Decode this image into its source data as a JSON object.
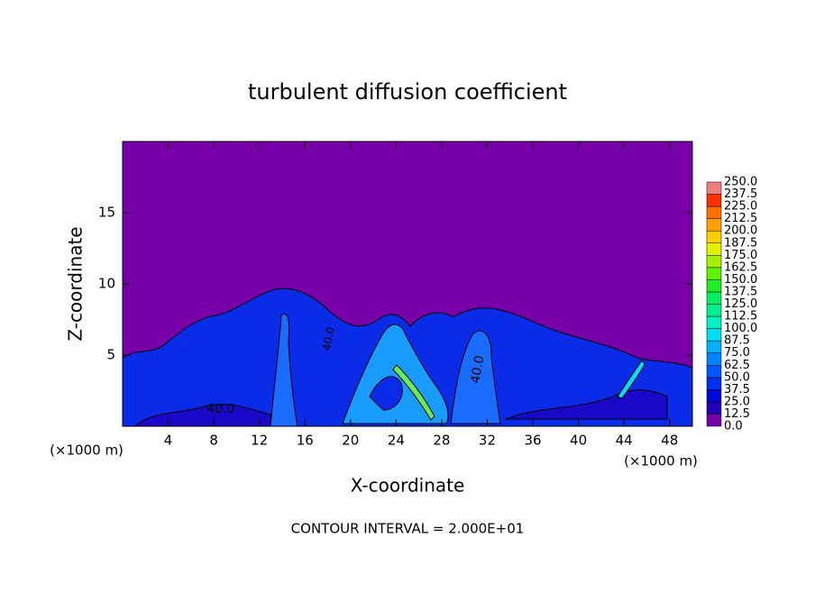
{
  "chart_data": {
    "type": "contour",
    "title": "turbulent diffusion coefficient",
    "x_label": "X-coordinate",
    "y_label": "Z-coordinate",
    "x_unit": "(×1000 m)",
    "x_unit_right": "(×1000 m)",
    "footer": "CONTOUR INTERVAL = 2.000E+01",
    "xlim": [
      0,
      50
    ],
    "ylim": [
      0,
      20
    ],
    "xticks": [
      4,
      8,
      12,
      16,
      20,
      24,
      28,
      32,
      36,
      40,
      44,
      48
    ],
    "yticks": [
      5,
      10,
      15
    ],
    "contour_labels": [
      "40.0",
      "40.0",
      "40.0"
    ],
    "colorbar": {
      "levels": [
        {
          "value": 0,
          "label": "0.0"
        },
        {
          "value": 12.5,
          "label": "12.5"
        },
        {
          "value": 25,
          "label": "25.0"
        },
        {
          "value": 37.5,
          "label": "37.5"
        },
        {
          "value": 50,
          "label": "50.0"
        },
        {
          "value": 62.5,
          "label": "62.5"
        },
        {
          "value": 75,
          "label": "75.0"
        },
        {
          "value": 87.5,
          "label": "87.5"
        },
        {
          "value": 100,
          "label": "100.0"
        },
        {
          "value": 112.5,
          "label": "112.5"
        },
        {
          "value": 125,
          "label": "125.0"
        },
        {
          "value": 137.5,
          "label": "137.5"
        },
        {
          "value": 150,
          "label": "150.0"
        },
        {
          "value": 162.5,
          "label": "162.5"
        },
        {
          "value": 175,
          "label": "175.0"
        },
        {
          "value": 187.5,
          "label": "187.5"
        },
        {
          "value": 200,
          "label": "200.0"
        },
        {
          "value": 212.5,
          "label": "212.5"
        },
        {
          "value": 225,
          "label": "225.0"
        },
        {
          "value": 237.5,
          "label": "237.5"
        },
        {
          "value": 250,
          "label": "250.0"
        }
      ],
      "colors": [
        "#7800a8",
        "#2400b8",
        "#0008d8",
        "#0030f0",
        "#0058ff",
        "#0084ff",
        "#00b0ff",
        "#00dcf0",
        "#00f0c0",
        "#00f090",
        "#00f060",
        "#20f020",
        "#60f000",
        "#a0f000",
        "#e0f000",
        "#ffd000",
        "#ffa000",
        "#ff7000",
        "#ff3000",
        "#f08080"
      ]
    }
  }
}
